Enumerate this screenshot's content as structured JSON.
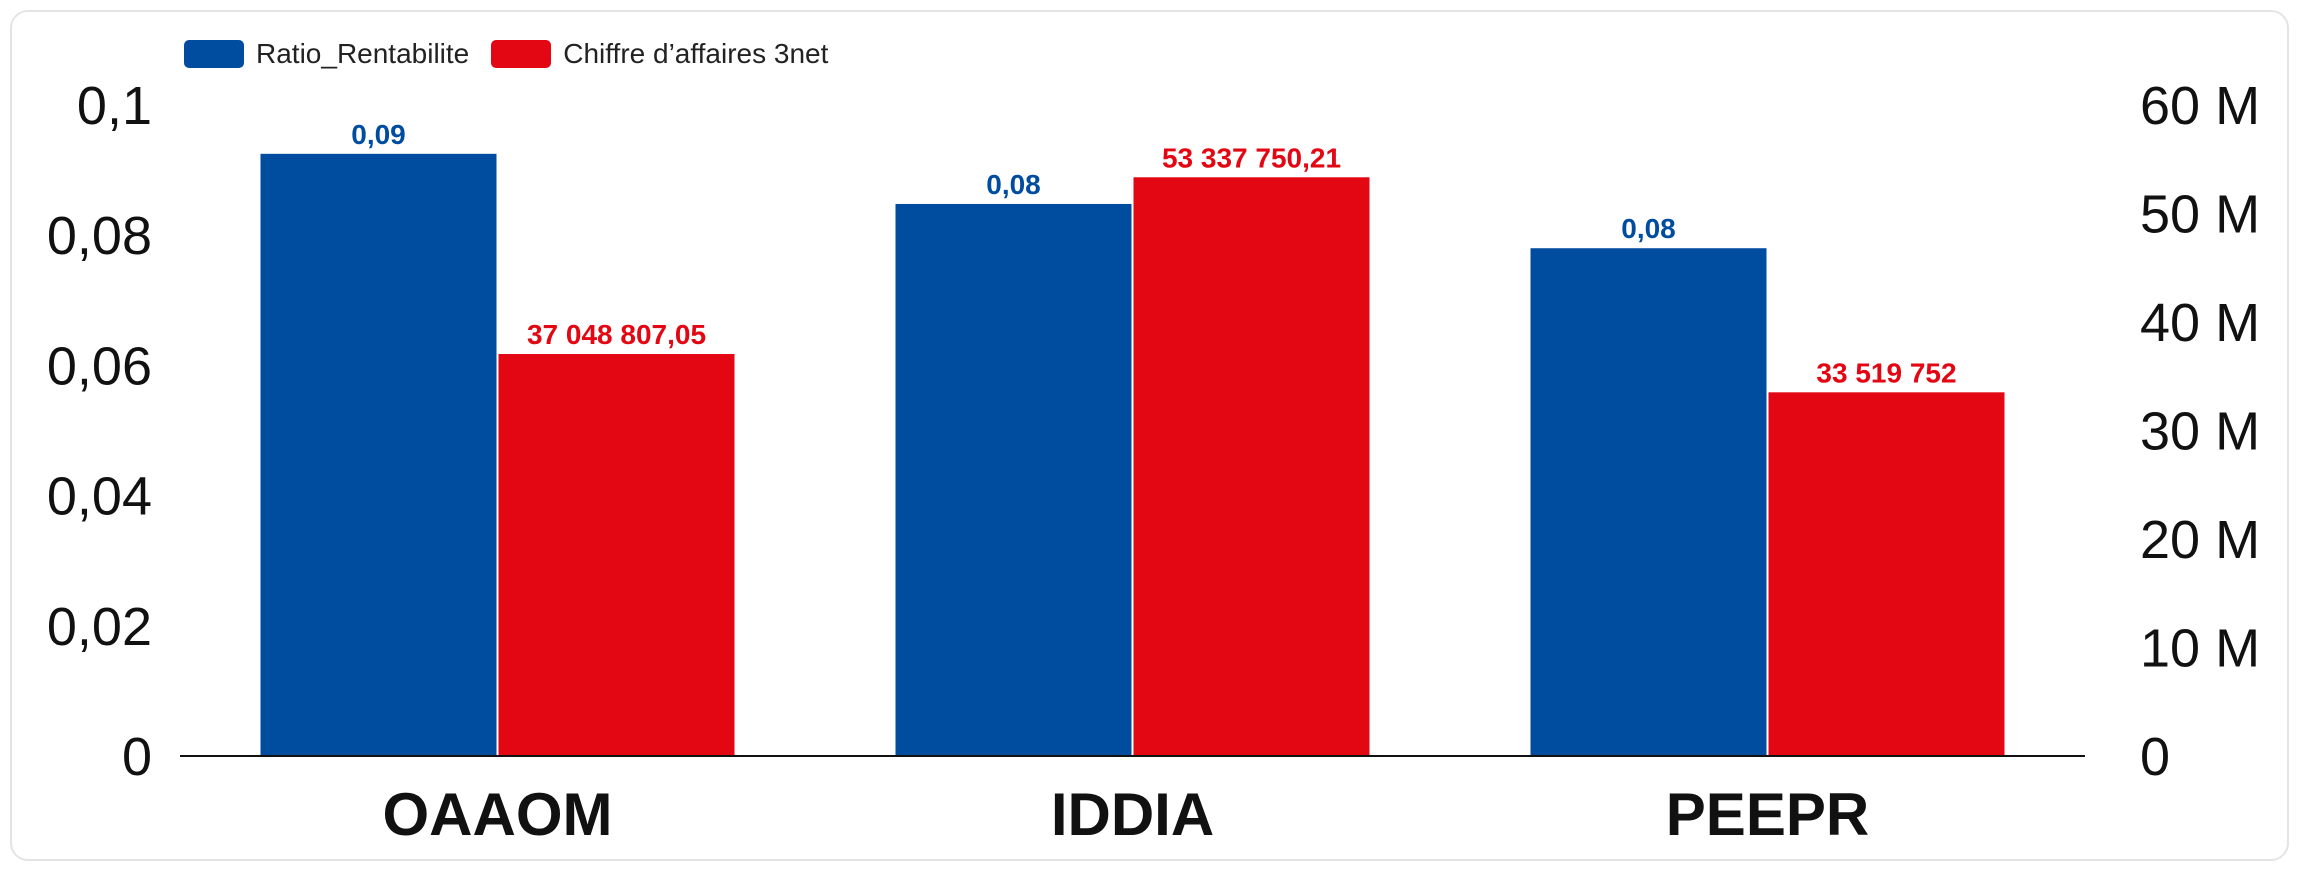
{
  "chart_data": {
    "type": "bar",
    "categories": [
      "OAAOM",
      "IDDIA",
      "PEEPR"
    ],
    "series": [
      {
        "name": "Ratio_Rentabilite",
        "axis": "left",
        "color": "#004c9f",
        "values": [
          0.0925,
          0.0848,
          0.078
        ],
        "data_labels": [
          "0,09",
          "0,08",
          "0,08"
        ]
      },
      {
        "name": "Chiffre d’affaires 3net",
        "axis": "right",
        "color": "#e30613",
        "values": [
          37048807.05,
          53337750.21,
          33519752
        ],
        "data_labels": [
          "37 048 807,05",
          "53 337 750,21",
          "33 519 752"
        ]
      }
    ],
    "y_left": {
      "ylim": [
        0,
        0.1
      ],
      "ticks": [
        0,
        0.02,
        0.04,
        0.06,
        0.08,
        0.1
      ],
      "tick_labels": [
        "0",
        "0,02",
        "0,04",
        "0,06",
        "0,08",
        "0,1"
      ]
    },
    "y_right": {
      "ylim": [
        0,
        60000000
      ],
      "ticks": [
        0,
        10000000,
        20000000,
        30000000,
        40000000,
        50000000,
        60000000
      ],
      "tick_labels": [
        "0",
        "10 M",
        "20 M",
        "30 M",
        "40 M",
        "50 M",
        "60 M"
      ]
    },
    "legend_position": "top-left",
    "grid": false
  }
}
